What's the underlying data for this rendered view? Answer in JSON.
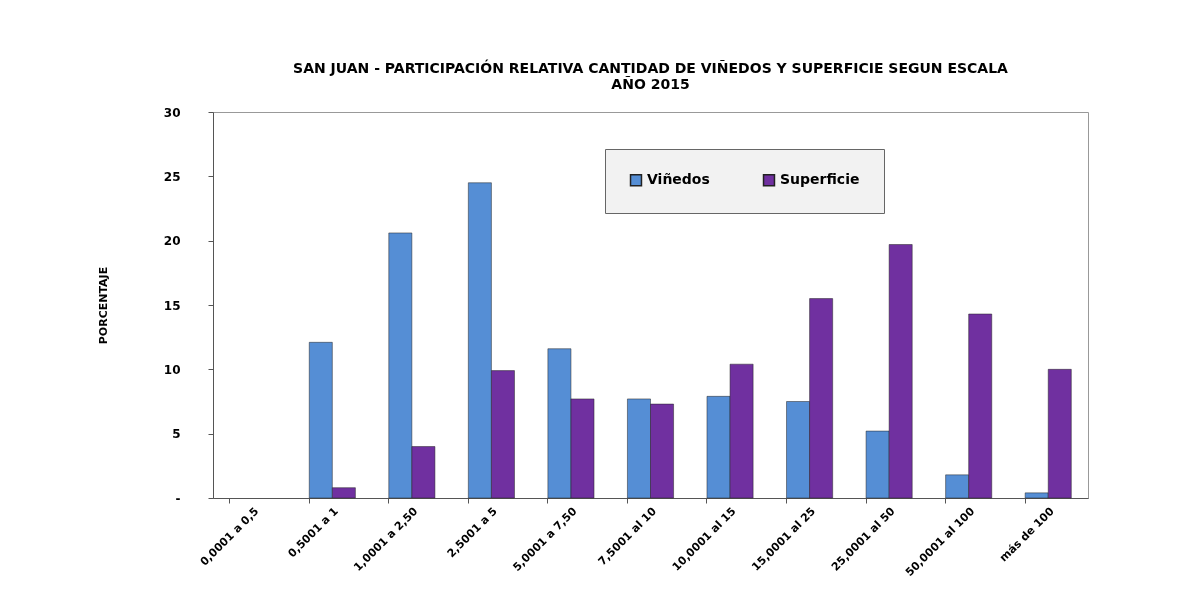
{
  "chart_data": {
    "type": "bar",
    "title": "SAN JUAN - PARTICIPACIÓN RELATIVA CANTIDAD DE VIÑEDOS Y SUPERFICIE SEGUN ESCALA\nAÑO 2015",
    "ylabel": "PORCENTAJE",
    "categories": [
      "0,0001 a 0,5",
      "0,5001 a 1",
      "1,0001 a 2,50",
      "2,5001 a 5",
      "5,0001 a 7,50",
      "7,5001 al 10",
      "10,0001 al 15",
      "15,0001 al 25",
      "25,0001 al 50",
      "50,0001 al 100",
      "más de 100"
    ],
    "series": [
      {
        "name": "Viñedos",
        "color": "#558ed5",
        "values": [
          null,
          12.1,
          20.6,
          24.5,
          11.6,
          7.7,
          7.9,
          7.5,
          5.2,
          1.8,
          0.4
        ]
      },
      {
        "name": "Superficie",
        "color": "#7030a0",
        "values": [
          null,
          0.8,
          4.0,
          9.9,
          7.7,
          7.3,
          10.4,
          15.5,
          19.7,
          14.3,
          10.0
        ]
      }
    ],
    "ylim": [
      0,
      30
    ],
    "yticks": [
      {
        "value": 0,
        "label": "-"
      },
      5,
      10,
      15,
      20,
      25,
      30
    ],
    "grid": false,
    "legend": "top"
  }
}
